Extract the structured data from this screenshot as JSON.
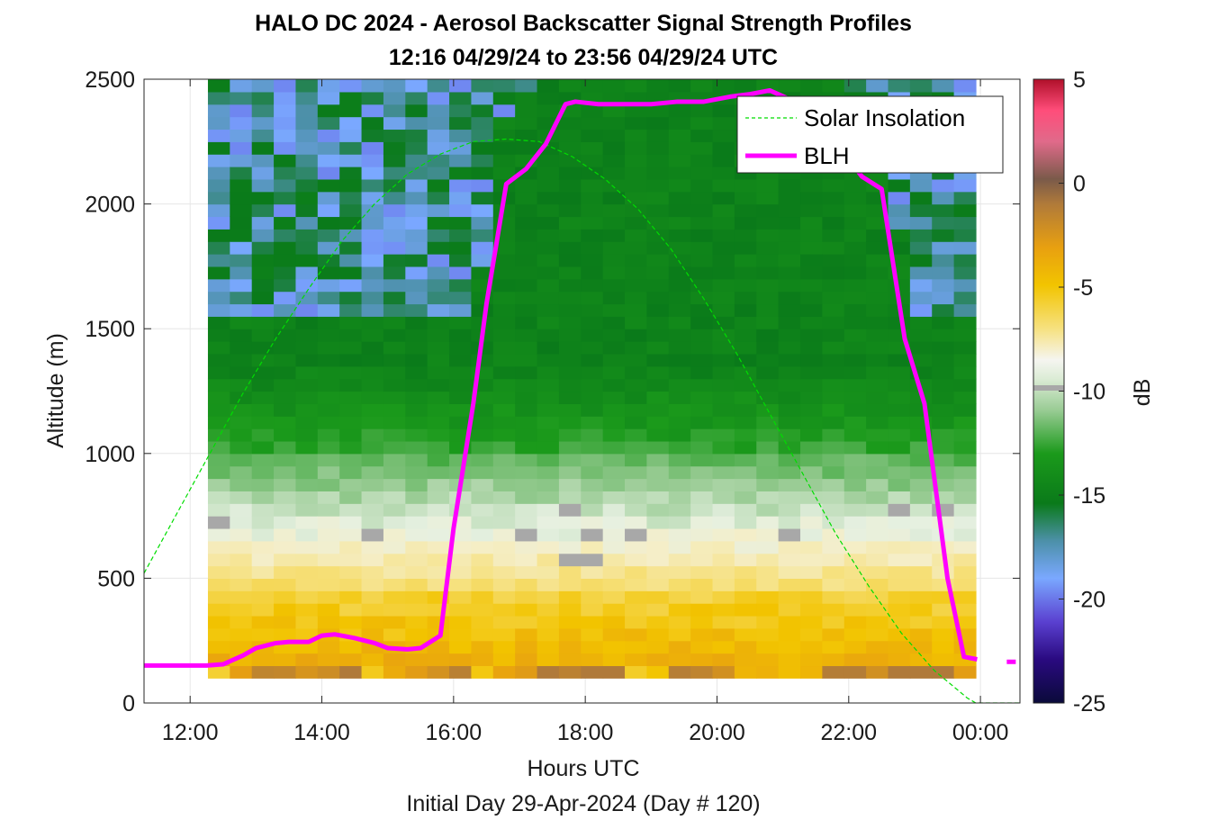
{
  "chart_data": {
    "type": "heatmap",
    "title_line1": "HALO DC 2024 - Aerosol Backscatter Signal Strength Profiles",
    "title_line2": "12:16 04/29/24 to 23:56 04/29/24  UTC",
    "xlabel": "Hours UTC",
    "xlabel_sub": "Initial Day 29-Apr-2024 (Day # 120)",
    "ylabel": "Altitude (m)",
    "xlim": [
      11.3,
      24.6
    ],
    "ylim": [
      0,
      2500
    ],
    "x_ticks": [
      12,
      14,
      16,
      18,
      20,
      22,
      24
    ],
    "x_tick_labels": [
      "12:00",
      "14:00",
      "16:00",
      "18:00",
      "20:00",
      "22:00",
      "00:00"
    ],
    "y_ticks": [
      0,
      500,
      1000,
      1500,
      2000,
      2500
    ],
    "y_tick_labels": [
      "0",
      "500",
      "1000",
      "1500",
      "2000",
      "2500"
    ],
    "grid": true,
    "colorbar": {
      "label": "dB",
      "range": [
        -25,
        5
      ],
      "ticks": [
        5,
        0,
        -5,
        -10,
        -15,
        -20,
        -25
      ],
      "tick_labels": [
        "5",
        "0",
        "-5",
        "-10",
        "-15",
        "-20",
        "-25"
      ]
    },
    "legend": {
      "position": "top-right",
      "entries": [
        "Solar Insolation",
        "BLH"
      ]
    },
    "heatmap": {
      "x_start": 12.27,
      "x_end": 23.93,
      "y_start": 100,
      "y_end": 2500,
      "n_cols": 35,
      "n_rows": 48
    },
    "series": [
      {
        "name": "BLH",
        "color": "#ff00ff",
        "x": [
          11.3,
          12.25,
          12.5,
          12.8,
          13.0,
          13.3,
          13.5,
          13.8,
          14.0,
          14.2,
          14.5,
          14.8,
          15.0,
          15.3,
          15.5,
          15.8,
          16.0,
          16.3,
          16.5,
          16.8,
          17.1,
          17.4,
          17.7,
          17.85,
          18.2,
          18.6,
          19.0,
          19.4,
          19.8,
          20.2,
          20.5,
          20.8,
          21.1,
          21.4,
          21.7,
          22.0,
          22.2,
          22.5,
          22.85,
          23.15,
          23.5,
          23.75,
          23.95
        ],
        "y": [
          150,
          150,
          155,
          190,
          220,
          240,
          245,
          245,
          270,
          275,
          260,
          240,
          220,
          215,
          220,
          270,
          700,
          1200,
          1600,
          2080,
          2140,
          2240,
          2400,
          2410,
          2400,
          2400,
          2400,
          2410,
          2410,
          2430,
          2440,
          2455,
          2420,
          2340,
          2280,
          2180,
          2110,
          2060,
          1460,
          1200,
          500,
          185,
          175
        ]
      },
      {
        "name": "BLH_tail",
        "color": "#ff00ff",
        "x": [
          24.4,
          24.6
        ],
        "y": [
          165,
          165
        ]
      },
      {
        "name": "Solar Insolation",
        "color": "#00dd00",
        "x": [
          11.3,
          11.8,
          12.3,
          12.8,
          13.3,
          13.8,
          14.3,
          14.8,
          15.3,
          15.8,
          16.3,
          16.8,
          17.3,
          17.8,
          18.3,
          18.8,
          19.3,
          19.8,
          20.3,
          20.8,
          21.3,
          21.8,
          22.3,
          22.8,
          23.3,
          23.8,
          23.93,
          24.6
        ],
        "y": [
          520,
          760,
          1000,
          1240,
          1460,
          1660,
          1850,
          2000,
          2120,
          2200,
          2250,
          2260,
          2250,
          2190,
          2100,
          1980,
          1820,
          1620,
          1400,
          1160,
          920,
          680,
          470,
          280,
          130,
          20,
          0,
          0
        ]
      }
    ]
  }
}
